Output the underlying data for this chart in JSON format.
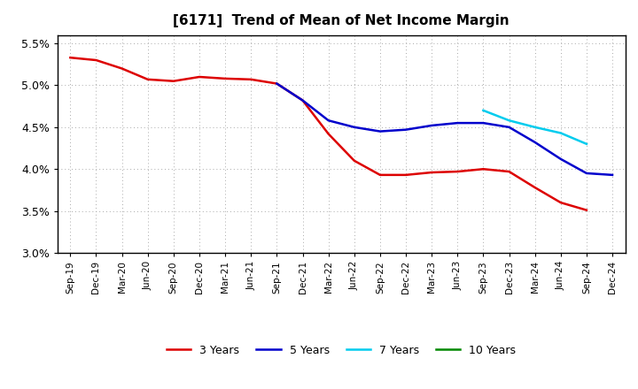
{
  "title": "[6171]  Trend of Mean of Net Income Margin",
  "x_labels": [
    "Sep-19",
    "Dec-19",
    "Mar-20",
    "Jun-20",
    "Sep-20",
    "Dec-20",
    "Mar-21",
    "Jun-21",
    "Sep-21",
    "Dec-21",
    "Mar-22",
    "Jun-22",
    "Sep-22",
    "Dec-22",
    "Mar-23",
    "Jun-23",
    "Sep-23",
    "Dec-23",
    "Mar-24",
    "Jun-24",
    "Sep-24",
    "Dec-24"
  ],
  "series_3y": [
    5.33,
    5.3,
    5.2,
    5.07,
    5.05,
    5.1,
    5.08,
    5.07,
    5.02,
    4.82,
    4.42,
    4.1,
    3.93,
    3.93,
    3.96,
    3.97,
    4.0,
    3.97,
    3.78,
    3.6,
    3.51,
    null
  ],
  "series_5y": [
    null,
    null,
    null,
    null,
    null,
    null,
    null,
    null,
    5.02,
    4.82,
    4.58,
    4.5,
    4.45,
    4.47,
    4.52,
    4.55,
    4.55,
    4.5,
    4.32,
    4.12,
    3.95,
    3.93
  ],
  "series_7y": [
    null,
    null,
    null,
    null,
    null,
    null,
    null,
    null,
    null,
    null,
    null,
    null,
    null,
    null,
    null,
    null,
    4.7,
    4.58,
    4.5,
    4.43,
    4.3,
    null
  ],
  "series_10y": [],
  "color_3y": "#dd0000",
  "color_5y": "#0000cc",
  "color_7y": "#00ccee",
  "color_10y": "#008800",
  "ylim_min": 3.0,
  "ylim_max": 5.6,
  "yticks": [
    3.0,
    3.5,
    4.0,
    4.5,
    5.0,
    5.5
  ],
  "ytick_labels": [
    "3.0%",
    "3.5%",
    "4.0%",
    "4.5%",
    "5.0%",
    "5.5%"
  ],
  "legend_labels": [
    "3 Years",
    "5 Years",
    "7 Years",
    "10 Years"
  ],
  "bg_color": "#ffffff",
  "plot_bg_color": "#ffffff",
  "grid_color": "#aaaaaa"
}
